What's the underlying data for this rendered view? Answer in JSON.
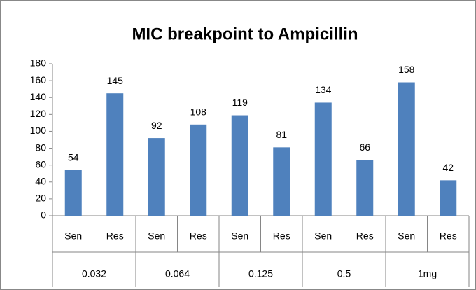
{
  "chart_data": {
    "type": "bar",
    "title": "MIC breakpoint to Ampicillin",
    "categories": [
      "Sen",
      "Res",
      "Sen",
      "Res",
      "Sen",
      "Res",
      "Sen",
      "Res",
      "Sen",
      "Res"
    ],
    "groups": [
      "0.032",
      "0.064",
      "0.125",
      "0.5",
      "1mg"
    ],
    "values": [
      54,
      145,
      92,
      108,
      119,
      81,
      134,
      66,
      158,
      42
    ],
    "color": "#4f81bd",
    "ylim": [
      0,
      180
    ],
    "yticks": [
      0,
      20,
      40,
      60,
      80,
      100,
      120,
      140,
      160,
      180
    ],
    "grid": false
  }
}
